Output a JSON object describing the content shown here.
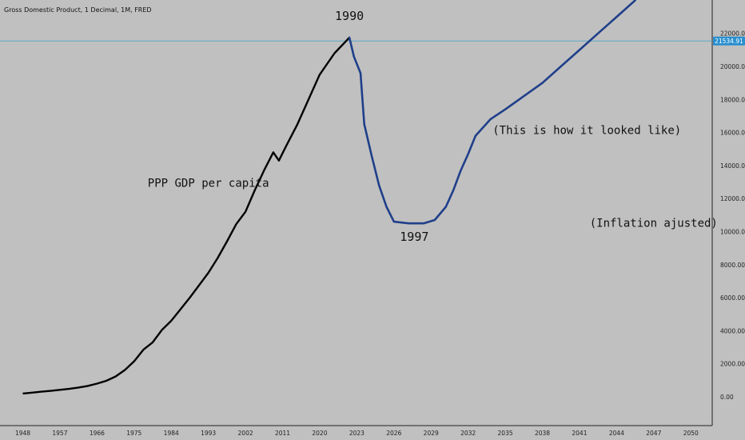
{
  "header": {
    "title": "Gross Domestic Product, 1 Decimal, 1M, FRED"
  },
  "colors": {
    "background": "#c0c0c0",
    "historical_line": "#000000",
    "hypothetical_line": "#1f3f8a",
    "price_line": "#5aa8c8",
    "price_tag": "#2a8fcf"
  },
  "price_tag": {
    "label": "21534.91",
    "value": 21534.91
  },
  "chart_data": {
    "type": "line",
    "title": "Gross Domestic Product, 1 Decimal, 1M, FRED",
    "xlabel": "",
    "ylabel": "",
    "x_ticks": [
      "1948",
      "1957",
      "1966",
      "1975",
      "1984",
      "1993",
      "2002",
      "2011",
      "2020",
      "2023",
      "2026",
      "2029",
      "2032",
      "2035",
      "2038",
      "2041",
      "2044",
      "2047",
      "2050"
    ],
    "y_ticks": [
      "0.00",
      "2000.00",
      "4000.00",
      "6000.00",
      "8000.00",
      "10000.00",
      "12000.00",
      "14000.00",
      "16000.00",
      "18000.00",
      "20000.00",
      "22000.00"
    ],
    "ylim": [
      -1500,
      24000
    ],
    "grid": false,
    "series": [
      {
        "style": "historical",
        "points": [
          [
            0,
            200
          ],
          [
            0.25,
            250
          ],
          [
            0.5,
            310
          ],
          [
            0.75,
            360
          ],
          [
            1,
            420
          ],
          [
            1.25,
            480
          ],
          [
            1.5,
            560
          ],
          [
            1.75,
            660
          ],
          [
            2,
            800
          ],
          [
            2.25,
            970
          ],
          [
            2.5,
            1230
          ],
          [
            2.75,
            1620
          ],
          [
            3,
            2150
          ],
          [
            3.25,
            2850
          ],
          [
            3.5,
            3300
          ],
          [
            3.75,
            4050
          ],
          [
            4,
            4600
          ],
          [
            4.25,
            5300
          ],
          [
            4.5,
            6000
          ],
          [
            4.75,
            6750
          ],
          [
            5,
            7500
          ],
          [
            5.25,
            8400
          ],
          [
            5.5,
            9400
          ],
          [
            5.75,
            10450
          ],
          [
            6,
            11200
          ],
          [
            6.25,
            12500
          ],
          [
            6.5,
            13700
          ],
          [
            6.75,
            14800
          ],
          [
            6.9,
            14300
          ],
          [
            7.1,
            15200
          ],
          [
            7.4,
            16500
          ],
          [
            7.7,
            18000
          ],
          [
            8,
            19500
          ],
          [
            8.4,
            20800
          ],
          [
            8.8,
            21750
          ]
        ]
      },
      {
        "style": "hypothetical",
        "points": [
          [
            8.8,
            21750
          ],
          [
            8.92,
            20600
          ],
          [
            9.1,
            19600
          ],
          [
            9.2,
            16500
          ],
          [
            9.4,
            14600
          ],
          [
            9.6,
            12800
          ],
          [
            9.8,
            11500
          ],
          [
            10,
            10600
          ],
          [
            10.4,
            10500
          ],
          [
            10.8,
            10500
          ],
          [
            11.1,
            10700
          ],
          [
            11.4,
            11500
          ],
          [
            11.6,
            12500
          ],
          [
            11.8,
            13700
          ],
          [
            12,
            14700
          ],
          [
            12.2,
            15800
          ],
          [
            12.6,
            16800
          ],
          [
            13,
            17400
          ],
          [
            13.5,
            18200
          ],
          [
            14,
            19000
          ],
          [
            14.5,
            20000
          ],
          [
            15,
            21000
          ],
          [
            15.5,
            22000
          ],
          [
            16,
            23000
          ],
          [
            16.5,
            24000
          ]
        ]
      }
    ],
    "annotations": [
      {
        "text": "1990",
        "x": 8.8,
        "y": 22800
      },
      {
        "text": "1997",
        "x": 10.55,
        "y": 9450
      },
      {
        "text": "PPP GDP per capita",
        "x": 5,
        "y": 12700
      },
      {
        "text": "(This is how it looked like)",
        "x": 15.2,
        "y": 15900
      },
      {
        "text": "(Inflation ajusted)",
        "x": 17,
        "y": 10300
      }
    ]
  }
}
